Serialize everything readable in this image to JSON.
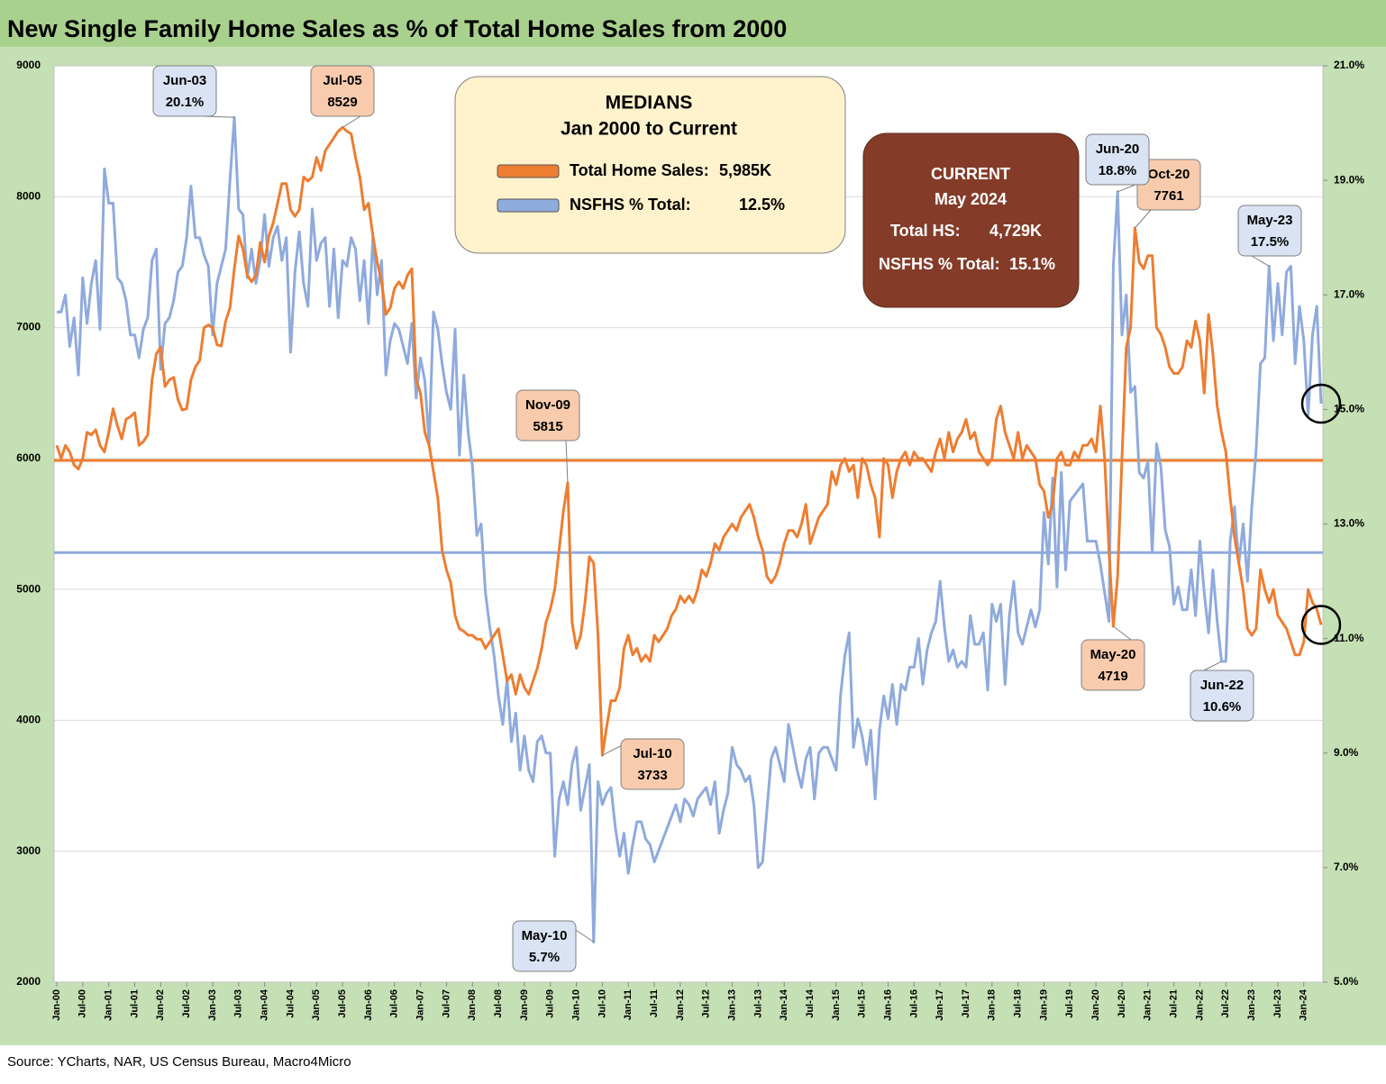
{
  "chart_data": {
    "type": "line",
    "title": "New Single Family Home Sales as % of Total Home Sales from 2000",
    "source": "Source: YCharts, NAR, US Census Bureau, Macro4Micro",
    "ylim": [
      2000,
      9000
    ],
    "yticks": [
      2000,
      3000,
      4000,
      5000,
      6000,
      7000,
      8000,
      9000
    ],
    "y2lim": [
      5,
      21
    ],
    "y2ticks": [
      {
        "value": 5,
        "label": "5.0%"
      },
      {
        "value": 7,
        "label": "7.0%"
      },
      {
        "value": 9,
        "label": "9.0%"
      },
      {
        "value": 11,
        "label": "11.0%"
      },
      {
        "value": 13,
        "label": "13.0%"
      },
      {
        "value": 15,
        "label": "15.0%"
      },
      {
        "value": 17,
        "label": "17.0%"
      },
      {
        "value": 19,
        "label": "19.0%"
      },
      {
        "value": 21,
        "label": "21.0%"
      }
    ],
    "grid": true,
    "categories": [
      "Jan-00",
      null,
      null,
      null,
      null,
      null,
      "Jul-00",
      null,
      null,
      null,
      null,
      null,
      "Jan-01",
      null,
      null,
      null,
      null,
      null,
      "Jul-01",
      null,
      null,
      null,
      null,
      null,
      "Jan-02",
      null,
      null,
      null,
      null,
      null,
      "Jul-02",
      null,
      null,
      null,
      null,
      null,
      "Jan-03",
      null,
      null,
      null,
      null,
      null,
      "Jul-03",
      null,
      null,
      null,
      null,
      null,
      "Jan-04",
      null,
      null,
      null,
      null,
      null,
      "Jul-04",
      null,
      null,
      null,
      null,
      null,
      "Jan-05",
      null,
      null,
      null,
      null,
      null,
      "Jul-05",
      null,
      null,
      null,
      null,
      null,
      "Jan-06",
      null,
      null,
      null,
      null,
      null,
      "Jul-06",
      null,
      null,
      null,
      null,
      null,
      "Jan-07",
      null,
      null,
      null,
      null,
      null,
      "Jul-07",
      null,
      null,
      null,
      null,
      null,
      "Jan-08",
      null,
      null,
      null,
      null,
      null,
      "Jul-08",
      null,
      null,
      null,
      null,
      null,
      "Jan-09",
      null,
      null,
      null,
      null,
      null,
      "Jul-09",
      null,
      null,
      null,
      null,
      null,
      "Jan-10",
      null,
      null,
      null,
      null,
      null,
      "Jul-10",
      null,
      null,
      null,
      null,
      null,
      "Jan-11",
      null,
      null,
      null,
      null,
      null,
      "Jul-11",
      null,
      null,
      null,
      null,
      null,
      "Jan-12",
      null,
      null,
      null,
      null,
      null,
      "Jul-12",
      null,
      null,
      null,
      null,
      null,
      "Jan-13",
      null,
      null,
      null,
      null,
      null,
      "Jul-13",
      null,
      null,
      null,
      null,
      null,
      "Jan-14",
      null,
      null,
      null,
      null,
      null,
      "Jul-14",
      null,
      null,
      null,
      null,
      null,
      "Jan-15",
      null,
      null,
      null,
      null,
      null,
      "Jul-15",
      null,
      null,
      null,
      null,
      null,
      "Jan-16",
      null,
      null,
      null,
      null,
      null,
      "Jul-16",
      null,
      null,
      null,
      null,
      null,
      "Jan-17",
      null,
      null,
      null,
      null,
      null,
      "Jul-17",
      null,
      null,
      null,
      null,
      null,
      "Jan-18",
      null,
      null,
      null,
      null,
      null,
      "Jul-18",
      null,
      null,
      null,
      null,
      null,
      "Jan-19",
      null,
      null,
      null,
      null,
      null,
      "Jul-19",
      null,
      null,
      null,
      null,
      null,
      "Jan-20",
      null,
      null,
      null,
      null,
      null,
      "Jul-20",
      null,
      null,
      null,
      null,
      null,
      "Jan-21",
      null,
      null,
      null,
      null,
      null,
      "Jul-21",
      null,
      null,
      null,
      null,
      null,
      "Jan-22",
      null,
      null,
      null,
      null,
      null,
      "Jul-22",
      null,
      null,
      null,
      null,
      null,
      "Jan-23",
      null,
      null,
      null,
      null,
      null,
      "Jul-23",
      null,
      null,
      null,
      null,
      null,
      "Jan-24",
      null,
      null,
      null,
      null
    ],
    "series": [
      {
        "color": "#ed7d31",
        "values": [
          6100,
          6000,
          6100,
          6050,
          5950,
          5920,
          6000,
          6200,
          6180,
          6220,
          6100,
          6050,
          6200,
          6380,
          6250,
          6150,
          6300,
          6320,
          6350,
          6100,
          6130,
          6180,
          6600,
          6800,
          6850,
          6550,
          6600,
          6620,
          6450,
          6370,
          6380,
          6600,
          6700,
          6750,
          7000,
          7020,
          7000,
          6870,
          6860,
          7050,
          7150,
          7450,
          7700,
          7600,
          7400,
          7350,
          7400,
          7650,
          7500,
          7700,
          7800,
          7950,
          8100,
          8100,
          7900,
          7850,
          7900,
          8150,
          8120,
          8150,
          8300,
          8200,
          8350,
          8400,
          8450,
          8500,
          8529,
          8500,
          8480,
          8300,
          8150,
          7900,
          7950,
          7700,
          7500,
          7350,
          7100,
          7150,
          7300,
          7350,
          7300,
          7400,
          7450,
          6600,
          6500,
          6200,
          6100,
          5900,
          5700,
          5300,
          5150,
          5050,
          4800,
          4700,
          4680,
          4650,
          4650,
          4620,
          4620,
          4550,
          4600,
          4650,
          4700,
          4500,
          4300,
          4350,
          4200,
          4350,
          4250,
          4200,
          4300,
          4400,
          4550,
          4750,
          4850,
          5000,
          5300,
          5600,
          5815,
          4750,
          4550,
          4650,
          4900,
          5250,
          5200,
          4650,
          3733,
          3950,
          4150,
          4150,
          4250,
          4550,
          4650,
          4500,
          4550,
          4450,
          4500,
          4450,
          4650,
          4600,
          4650,
          4700,
          4800,
          4850,
          4950,
          4900,
          4950,
          4900,
          5000,
          5150,
          5100,
          5200,
          5350,
          5300,
          5400,
          5450,
          5500,
          5450,
          5550,
          5600,
          5650,
          5550,
          5400,
          5300,
          5100,
          5050,
          5100,
          5200,
          5350,
          5450,
          5450,
          5400,
          5500,
          5650,
          5350,
          5450,
          5550,
          5600,
          5650,
          5900,
          5800,
          5950,
          6000,
          5900,
          5950,
          5700,
          6000,
          5950,
          5800,
          5700,
          5400,
          6000,
          5950,
          5700,
          5900,
          6000,
          6050,
          5950,
          6050,
          6000,
          6000,
          5950,
          5900,
          6050,
          6150,
          6000,
          6200,
          6050,
          6150,
          6200,
          6300,
          6150,
          6200,
          6050,
          6000,
          5950,
          6000,
          6300,
          6400,
          6200,
          6100,
          6000,
          6200,
          6000,
          6100,
          6050,
          6000,
          5800,
          5750,
          5550,
          5650,
          6000,
          6050,
          5950,
          5950,
          6050,
          6000,
          6100,
          6100,
          6150,
          6050,
          6400,
          6000,
          5300,
          4719,
          5100,
          6000,
          6850,
          7000,
          7761,
          7500,
          7450,
          7550,
          7550,
          7000,
          6950,
          6850,
          6700,
          6650,
          6650,
          6700,
          6900,
          6850,
          7050,
          6900,
          6500,
          7100,
          6800,
          6400,
          6200,
          6050,
          5700,
          5400,
          5200,
          5000,
          4700,
          4650,
          4700,
          5150,
          5000,
          4900,
          5000,
          4800,
          4750,
          4700,
          4600,
          4500,
          4500,
          4600,
          5000,
          4900,
          4850,
          4729
        ],
        "callouts": [
          {
            "date": "Jul-05"
          },
          {
            "date": "Nov-09"
          },
          {
            "date": "Jul-10"
          },
          {
            "date": "May-20"
          },
          {
            "date": "Oct-20"
          }
        ]
      },
      {
        "color": "#8faadc",
        "axis": "y2",
        "values": [
          16.7,
          16.7,
          17.0,
          16.1,
          16.6,
          15.6,
          17.3,
          16.5,
          17.2,
          17.6,
          16.4,
          19.2,
          18.6,
          18.6,
          17.3,
          17.2,
          16.9,
          16.3,
          16.3,
          15.9,
          16.4,
          16.6,
          17.6,
          17.8,
          15.7,
          16.5,
          16.6,
          16.9,
          17.4,
          17.5,
          18.0,
          18.9,
          18.0,
          18.0,
          17.7,
          17.5,
          16.3,
          17.2,
          17.5,
          17.8,
          19.0,
          20.1,
          18.5,
          18.4,
          17.3,
          17.8,
          17.2,
          17.6,
          18.4,
          17.5,
          18.0,
          18.2,
          17.6,
          18.0,
          16.0,
          17.4,
          18.1,
          17.2,
          16.8,
          18.5,
          17.6,
          17.9,
          18.0,
          16.8,
          17.8,
          16.6,
          17.6,
          17.5,
          18.0,
          17.8,
          16.9,
          17.6,
          16.5,
          18.0,
          17.0,
          17.6,
          15.6,
          16.2,
          16.5,
          16.4,
          16.1,
          15.8,
          16.5,
          15.2,
          15.9,
          15.5,
          14.4,
          16.7,
          16.4,
          15.8,
          15.3,
          15.0,
          16.4,
          14.2,
          15.6,
          14.6,
          14.0,
          12.8,
          13.0,
          11.8,
          11.2,
          10.7,
          10.0,
          9.5,
          10.3,
          9.2,
          9.7,
          8.7,
          9.3,
          8.7,
          8.5,
          9.2,
          9.3,
          9.0,
          9.0,
          7.2,
          8.2,
          8.5,
          8.1,
          8.8,
          9.1,
          8.0,
          8.4,
          8.8,
          5.7,
          8.5,
          8.1,
          8.3,
          8.4,
          7.7,
          7.2,
          7.6,
          6.9,
          7.4,
          7.8,
          7.8,
          7.5,
          7.4,
          7.1,
          7.3,
          7.5,
          7.7,
          7.9,
          8.1,
          7.8,
          8.2,
          8.1,
          7.9,
          8.2,
          8.3,
          8.4,
          8.1,
          8.5,
          7.6,
          8.0,
          8.3,
          9.1,
          8.8,
          8.7,
          8.5,
          8.6,
          8.1,
          7.0,
          7.1,
          8.0,
          8.9,
          9.1,
          8.8,
          8.5,
          9.5,
          9.1,
          8.7,
          8.4,
          8.9,
          9.1,
          8.2,
          9.0,
          9.1,
          9.1,
          8.9,
          8.7,
          10.0,
          10.7,
          11.1,
          9.1,
          9.6,
          9.3,
          8.8,
          9.4,
          8.2,
          9.4,
          10.0,
          9.6,
          10.2,
          9.5,
          10.2,
          10.1,
          10.5,
          10.5,
          11.0,
          10.2,
          10.8,
          11.1,
          11.3,
          12.0,
          11.2,
          10.6,
          10.8,
          10.5,
          10.6,
          10.5,
          11.4,
          10.9,
          10.9,
          11.1,
          10.1,
          11.6,
          11.3,
          11.6,
          10.2,
          11.4,
          12.0,
          11.1,
          10.9,
          11.2,
          11.5,
          11.2,
          11.5,
          13.2,
          12.3,
          13.8,
          11.9,
          13.9,
          12.2,
          13.4,
          13.5,
          13.6,
          13.7,
          12.7,
          12.7,
          12.7,
          12.3,
          11.8,
          11.3,
          17.5,
          18.8,
          16.3,
          17.0,
          15.3,
          15.4,
          13.9,
          13.8,
          14.1,
          12.5,
          14.4,
          14.0,
          12.9,
          12.6,
          11.6,
          11.9,
          11.5,
          11.5,
          12.2,
          11.4,
          12.7,
          11.8,
          11.1,
          12.2,
          11.3,
          10.6,
          10.6,
          12.7,
          13.3,
          12.3,
          13.0,
          12.0,
          13.3,
          14.3,
          15.8,
          15.9,
          17.5,
          16.2,
          17.2,
          16.3,
          17.4,
          17.5,
          15.8,
          16.8,
          16.2,
          14.9,
          16.3,
          16.8,
          15.1
        ],
        "callouts": [
          {
            "date": "Jun-03",
            "value_label": "20.1%"
          },
          {
            "date": "May-10",
            "value_label": "5.7%"
          },
          {
            "date": "Jun-20",
            "value_label": "18.8%"
          },
          {
            "date": "Jun-22",
            "value_label": "10.6%"
          },
          {
            "date": "May-23",
            "value_label": "17.5%"
          }
        ]
      }
    ],
    "median_box": {
      "title": "MEDIANS",
      "subtitle": "Jan 2000 to Current",
      "entries": [
        {
          "label": "Total Home Sales:",
          "value": 5985,
          "value_label": "5,985K"
        },
        {
          "label": "NSFHS % Total:",
          "value": 12.5,
          "value_label": "12.5%"
        }
      ]
    },
    "current_box": {
      "title": "CURRENT",
      "subtitle": "May 2024",
      "entries": [
        {
          "label": "Total HS:",
          "value": 4729,
          "value_label": "4,729K"
        },
        {
          "label": "NSFHS % Total:",
          "value": 15.1,
          "value_label": "15.1%"
        }
      ]
    }
  }
}
